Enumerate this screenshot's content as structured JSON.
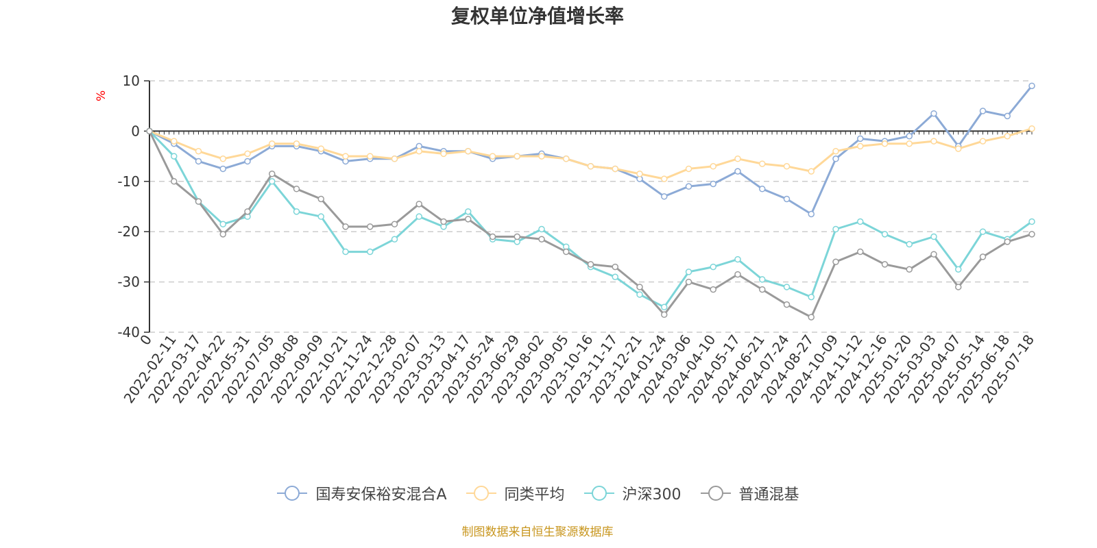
{
  "chart_data": {
    "type": "line",
    "title": "复权单位净值增长率",
    "ylabel": "%",
    "xlabel": "",
    "ylim": [
      -40,
      10
    ],
    "yticks": [
      10,
      0,
      -10,
      -20,
      -30,
      -40
    ],
    "grid": true,
    "legend_position": "bottom",
    "source": "制图数据来自恒生聚源数据库",
    "x": [
      "0",
      "2022-02-11",
      "2022-03-17",
      "2022-04-22",
      "2022-05-31",
      "2022-07-05",
      "2022-08-08",
      "2022-09-09",
      "2022-10-21",
      "2022-11-24",
      "2022-12-28",
      "2023-02-07",
      "2023-03-13",
      "2023-04-17",
      "2023-05-24",
      "2023-06-29",
      "2023-08-02",
      "2023-09-05",
      "2023-10-16",
      "2023-11-17",
      "2023-12-21",
      "2024-01-24",
      "2024-03-06",
      "2024-04-10",
      "2024-05-17",
      "2024-06-21",
      "2024-07-24",
      "2024-08-27",
      "2024-10-09",
      "2024-11-12",
      "2024-12-16",
      "2025-01-20",
      "2025-03-03",
      "2025-04-07",
      "2025-05-14",
      "2025-06-18",
      "2025-07-18"
    ],
    "series": [
      {
        "name": "国寿安保裕安混合A",
        "color": "#8caad6",
        "values": [
          0,
          -2.5,
          -6,
          -7.5,
          -6,
          -3,
          -3,
          -4,
          -6,
          -5.5,
          -5.5,
          -3,
          -4,
          -4,
          -5.5,
          -5,
          -4.5,
          -5.5,
          -7,
          -7.5,
          -9.5,
          -13,
          -11,
          -10.5,
          -8,
          -11.5,
          -13.5,
          -16.5,
          -5.5,
          -1.5,
          -2,
          -1,
          3.5,
          -3,
          4,
          3,
          9
        ]
      },
      {
        "name": "同类平均",
        "color": "#ffd898",
        "values": [
          0,
          -2,
          -4,
          -5.5,
          -4.5,
          -2.5,
          -2.5,
          -3.5,
          -5,
          -5,
          -5.5,
          -4,
          -4.5,
          -4,
          -5,
          -5,
          -5,
          -5.5,
          -7,
          -7.5,
          -8.5,
          -9.5,
          -7.5,
          -7,
          -5.5,
          -6.5,
          -7,
          -8,
          -4,
          -3,
          -2.5,
          -2.5,
          -2,
          -3.5,
          -2,
          -1,
          0.5
        ]
      },
      {
        "name": "沪深300",
        "color": "#7cd5d8",
        "values": [
          0,
          -5,
          -14,
          -18.5,
          -17,
          -10,
          -16,
          -17,
          -24,
          -24,
          -21.5,
          -17,
          -19,
          -16,
          -21.5,
          -22,
          -19.5,
          -23,
          -27,
          -29,
          -32.5,
          -35,
          -28,
          -27,
          -25.5,
          -29.5,
          -31,
          -33,
          -19.5,
          -18,
          -20.5,
          -22.5,
          -21,
          -27.5,
          -20,
          -21.5,
          -18
        ]
      },
      {
        "name": "普通混基",
        "color": "#9a9a9a",
        "values": [
          0,
          -10,
          -14,
          -20.5,
          -16,
          -8.5,
          -11.5,
          -13.5,
          -19,
          -19,
          -18.5,
          -14.5,
          -18,
          -17.5,
          -21,
          -21,
          -21.5,
          -24,
          -26.5,
          -27,
          -31,
          -36.5,
          -30,
          -31.5,
          -28.5,
          -31.5,
          -34.5,
          -37,
          -26,
          -24,
          -26.5,
          -27.5,
          -24.5,
          -31,
          -25,
          -22,
          -20.5
        ]
      }
    ]
  }
}
